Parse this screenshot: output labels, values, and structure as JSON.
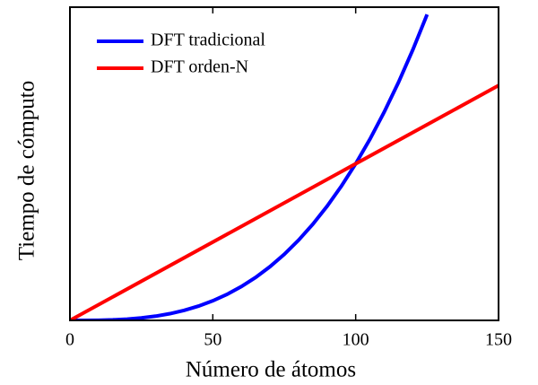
{
  "chart_data": {
    "type": "line",
    "xlabel": "Número de átomos",
    "ylabel": "Tiempo de cómputo",
    "xlim": [
      0,
      150
    ],
    "xticks": [
      0,
      50,
      100,
      150
    ],
    "ylim": [
      0,
      1
    ],
    "legend": "upper left",
    "series": [
      {
        "name": "DFT tradicional",
        "color": "#0000ff",
        "x": [
          0,
          5,
          10,
          15,
          20,
          25,
          30,
          35,
          40,
          45,
          50,
          55,
          60,
          65,
          70,
          75,
          80,
          85,
          90,
          95,
          100,
          105,
          110,
          115,
          120,
          125
        ],
        "values": [
          0,
          0.0001,
          0.0005,
          0.0017,
          0.004,
          0.0078,
          0.0135,
          0.0214,
          0.032,
          0.0456,
          0.0625,
          0.0832,
          0.108,
          0.1373,
          0.1715,
          0.2109,
          0.256,
          0.3071,
          0.3645,
          0.4287,
          0.5,
          0.5788,
          0.6655,
          0.7604,
          0.864,
          0.9766
        ]
      },
      {
        "name": "DFT orden-N",
        "color": "#ff0000",
        "x": [
          0,
          150
        ],
        "values": [
          0,
          0.75
        ]
      }
    ]
  }
}
